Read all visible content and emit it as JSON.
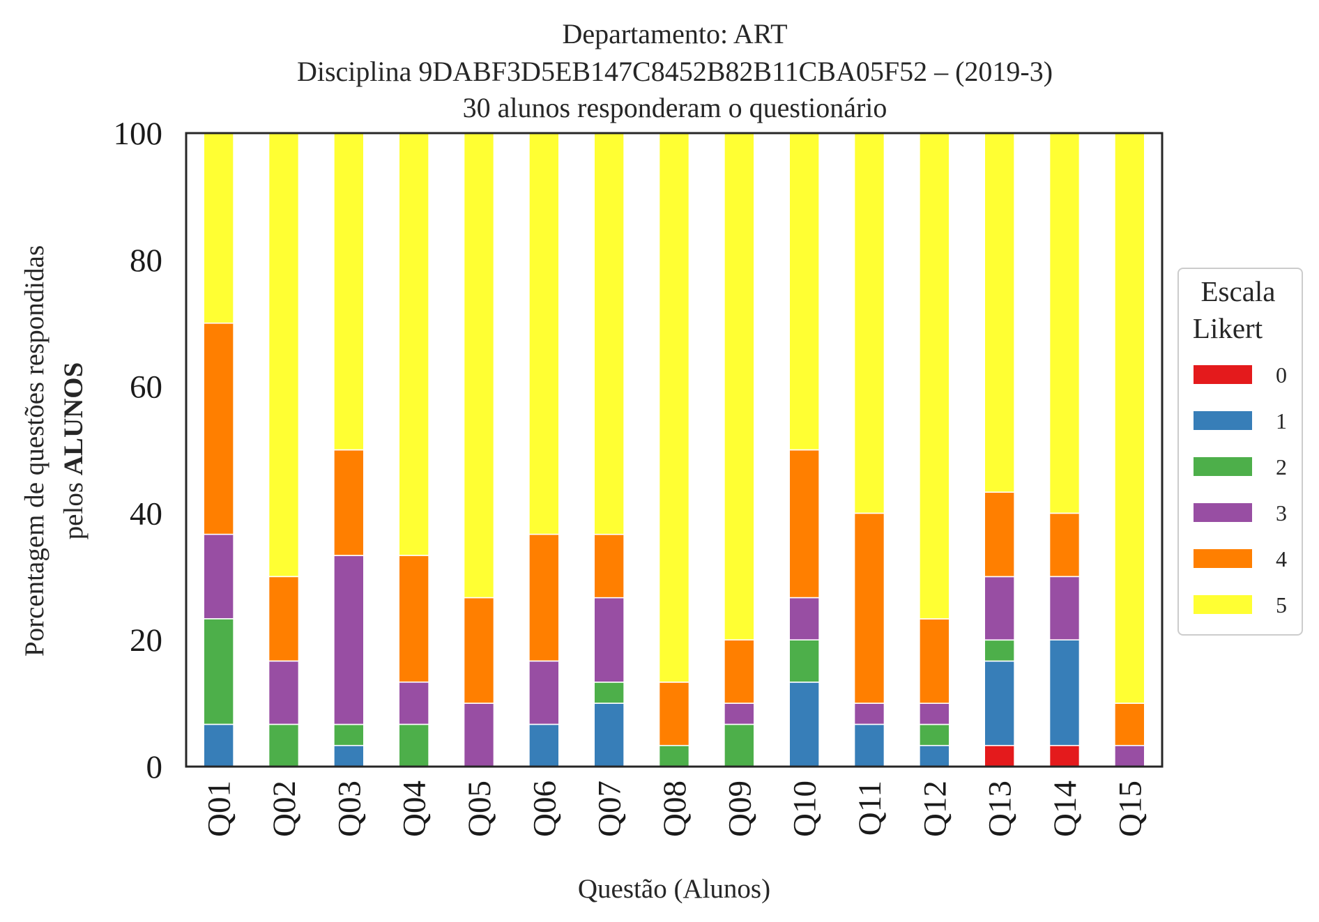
{
  "chart_data": {
    "type": "bar",
    "stacked": true,
    "title_lines": [
      "Departamento: ART",
      "Disciplina 9DABF3D5EB147C8452B82B11CBA05F52 – (2019-3)",
      "30 alunos responderam o questionário"
    ],
    "xlabel": "Questão (Alunos)",
    "ylabel_line1": "Porcentagem de questões respondidas",
    "ylabel_line2_prefix": "pelos ",
    "ylabel_line2_bold": "ALUNOS",
    "ylim": [
      0,
      100
    ],
    "yticks": [
      "0",
      "20",
      "40",
      "60",
      "80",
      "100"
    ],
    "grid": false,
    "legend": {
      "title_lines": [
        "Escala",
        "Likert"
      ],
      "placement": "right, outside the plot, vertically centered"
    },
    "categories": [
      "Q01",
      "Q02",
      "Q03",
      "Q04",
      "Q05",
      "Q06",
      "Q07",
      "Q08",
      "Q09",
      "Q10",
      "Q11",
      "Q12",
      "Q13",
      "Q14",
      "Q15"
    ],
    "series": [
      {
        "name": "0",
        "color": "#e41a1c",
        "values": [
          0,
          0,
          0,
          0,
          0,
          0,
          0,
          0,
          0,
          0,
          0,
          0,
          3.33,
          3.33,
          0
        ]
      },
      {
        "name": "1",
        "color": "#377eb8",
        "values": [
          6.67,
          0,
          3.33,
          0,
          0,
          6.67,
          10,
          0,
          0,
          13.33,
          6.67,
          3.33,
          13.33,
          16.67,
          0
        ]
      },
      {
        "name": "2",
        "color": "#4daf4a",
        "values": [
          16.67,
          6.67,
          3.33,
          6.67,
          0,
          0,
          3.33,
          3.33,
          6.67,
          6.67,
          0,
          3.33,
          3.33,
          0,
          0
        ]
      },
      {
        "name": "3",
        "color": "#984ea3",
        "values": [
          13.33,
          10,
          26.67,
          6.67,
          10,
          10,
          13.33,
          0,
          3.33,
          6.67,
          3.33,
          3.33,
          10,
          10,
          3.33
        ]
      },
      {
        "name": "4",
        "color": "#ff7f00",
        "values": [
          33.33,
          13.33,
          16.67,
          20,
          16.67,
          20,
          10,
          10,
          10,
          23.33,
          30,
          13.33,
          13.33,
          10,
          6.67
        ]
      },
      {
        "name": "5",
        "color": "#ffff33",
        "values": [
          30,
          70,
          50,
          66.67,
          73.33,
          63.33,
          63.33,
          86.67,
          80,
          50,
          60,
          76.67,
          56.67,
          60,
          90
        ]
      }
    ]
  }
}
